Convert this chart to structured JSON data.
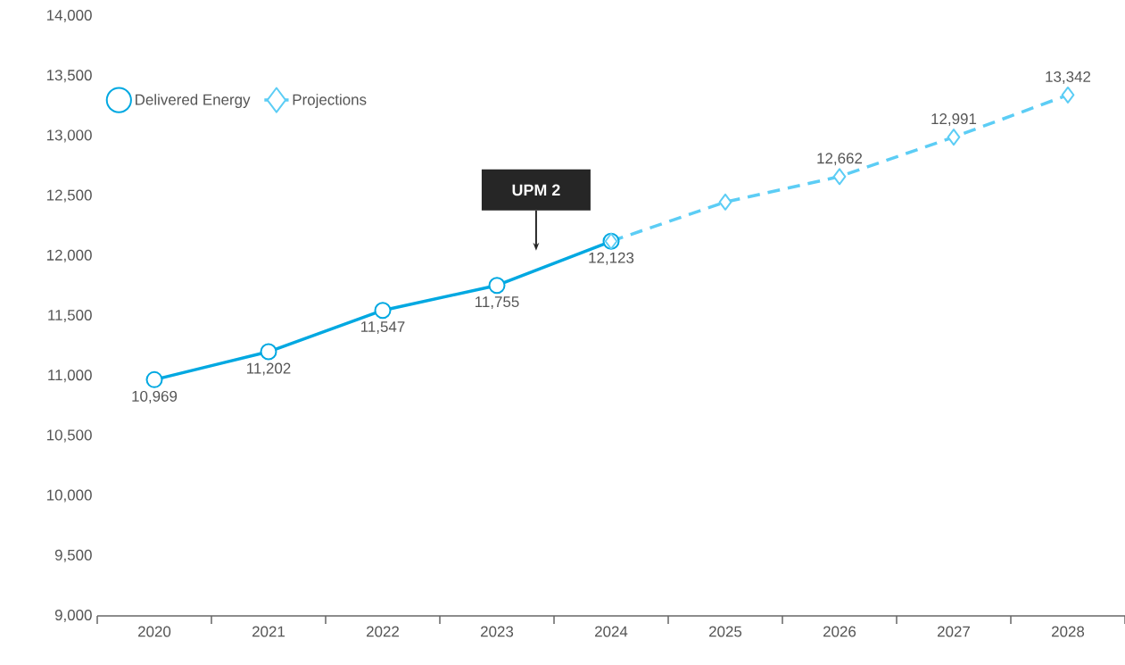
{
  "chart_data": {
    "type": "line",
    "categories": [
      "2020",
      "2021",
      "2022",
      "2023",
      "2024",
      "2025",
      "2026",
      "2027",
      "2028"
    ],
    "series": [
      {
        "name": "Delivered Energy",
        "color": "#00a8e1",
        "marker": "circle",
        "line_style": "solid",
        "values": [
          10969,
          11202,
          11547,
          11755,
          12123,
          null,
          null,
          null,
          null
        ],
        "value_labels": [
          "10,969",
          "11,202",
          "11,547",
          "11,755",
          "12,123",
          null,
          null,
          null,
          null
        ]
      },
      {
        "name": "Projections",
        "color": "#5ccdf5",
        "marker": "diamond",
        "line_style": "dashed",
        "values": [
          null,
          null,
          null,
          null,
          12123,
          12450,
          12662,
          12991,
          13342
        ],
        "value_labels": [
          null,
          null,
          null,
          null,
          null,
          null,
          "12,662",
          "12,991",
          "13,342"
        ]
      }
    ],
    "ylim": [
      9000,
      14000
    ],
    "yticks": [
      {
        "value": 9000,
        "label": "9,000"
      },
      {
        "value": 9500,
        "label": "9,500"
      },
      {
        "value": 10000,
        "label": "10,000"
      },
      {
        "value": 10500,
        "label": "10,500"
      },
      {
        "value": 11000,
        "label": "11,000"
      },
      {
        "value": 11500,
        "label": "11,500"
      },
      {
        "value": 12000,
        "label": "12,000"
      },
      {
        "value": 12500,
        "label": "12,500"
      },
      {
        "value": 13000,
        "label": "13,000"
      },
      {
        "value": 13500,
        "label": "13,500"
      },
      {
        "value": 14000,
        "label": "14,000"
      }
    ],
    "annotations": [
      "UPM 2"
    ],
    "legend": "top left",
    "grid": false
  }
}
